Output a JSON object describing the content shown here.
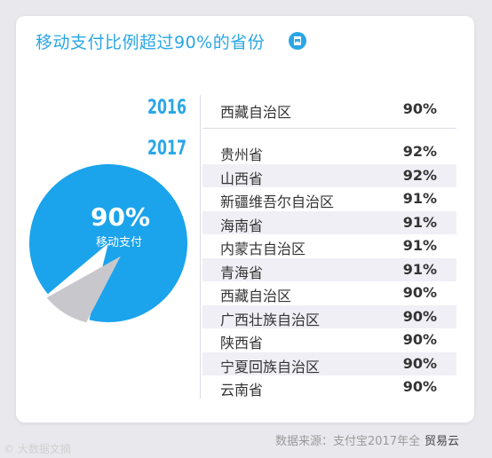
{
  "title": "移动支付比例超过90%的省份",
  "title_icon": "bookmark-icon",
  "colors": {
    "accent": "#2aa6e6",
    "pie_main": "#1ba3ec",
    "pie_minor": "#c8c8cc",
    "row_shade": "#f0eff6"
  },
  "chart_data": [
    {
      "type": "pie",
      "slices": [
        {
          "label": "移动支付",
          "value": 90
        },
        {
          "label": "",
          "value": 10
        }
      ],
      "center_value": "90%",
      "center_label": "移动支付"
    },
    {
      "type": "table",
      "groups": [
        {
          "year": "2016",
          "rows": [
            {
              "province": "西藏自治区",
              "value": "90%"
            }
          ]
        },
        {
          "year": "2017",
          "rows": [
            {
              "province": "贵州省",
              "value": "92%"
            },
            {
              "province": "山西省",
              "value": "92%"
            },
            {
              "province": "新疆维吾尔自治区",
              "value": "91%"
            },
            {
              "province": "海南省",
              "value": "91%"
            },
            {
              "province": "内蒙古自治区",
              "value": "91%"
            },
            {
              "province": "青海省",
              "value": "91%"
            },
            {
              "province": "西藏自治区",
              "value": "90%"
            },
            {
              "province": "广西壮族自治区",
              "value": "90%"
            },
            {
              "province": "陕西省",
              "value": "90%"
            },
            {
              "province": "宁夏回族自治区",
              "value": "90%"
            },
            {
              "province": "云南省",
              "value": "90%"
            }
          ]
        }
      ]
    }
  ],
  "source": "数据来源：支付宝2017年全",
  "watermark_left": "© 大数据文摘",
  "watermark_right": "贸易云"
}
